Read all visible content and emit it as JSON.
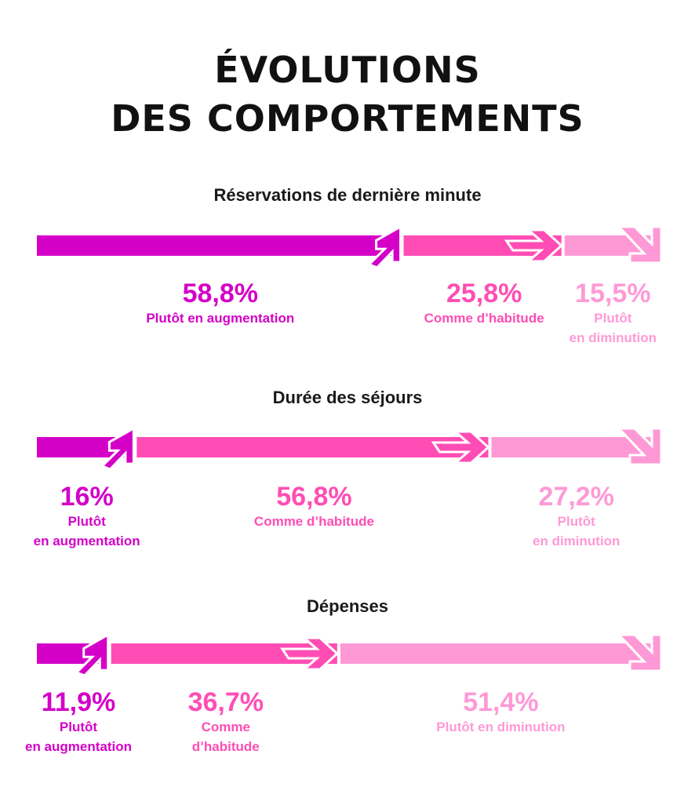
{
  "title_line1": "ÉVOLUTIONS",
  "title_line2": "DES COMPORTEMENTS",
  "colors": {
    "augmentation": "#d400c8",
    "habitude": "#ff4db5",
    "diminution": "#ff99d6"
  },
  "chart_data": [
    {
      "type": "bar",
      "orientation": "horizontal-stacked",
      "title": "Réservations de dernière minute",
      "segments": [
        {
          "value": 58.8,
          "pct": "58,8%",
          "label_lines": [
            "Plutôt en augmentation"
          ],
          "category": "augmentation"
        },
        {
          "value": 25.8,
          "pct": "25,8%",
          "label_lines": [
            "Comme d’habitude"
          ],
          "category": "habitude"
        },
        {
          "value": 15.5,
          "pct": "15,5%",
          "label_lines": [
            "Plutôt",
            "en diminution"
          ],
          "category": "diminution"
        }
      ]
    },
    {
      "type": "bar",
      "orientation": "horizontal-stacked",
      "title": "Durée des séjours",
      "segments": [
        {
          "value": 16,
          "pct": "16%",
          "label_lines": [
            "Plutôt",
            "en augmentation"
          ],
          "category": "augmentation"
        },
        {
          "value": 56.8,
          "pct": "56,8%",
          "label_lines": [
            "Comme d’habitude"
          ],
          "category": "habitude"
        },
        {
          "value": 27.2,
          "pct": "27,2%",
          "label_lines": [
            "Plutôt",
            "en diminution"
          ],
          "category": "diminution"
        }
      ]
    },
    {
      "type": "bar",
      "orientation": "horizontal-stacked",
      "title": "Dépenses",
      "segments": [
        {
          "value": 11.9,
          "pct": "11,9%",
          "label_lines": [
            "Plutôt",
            "en augmentation"
          ],
          "category": "augmentation"
        },
        {
          "value": 36.7,
          "pct": "36,7%",
          "label_lines": [
            "Comme",
            "d’habitude"
          ],
          "category": "habitude"
        },
        {
          "value": 51.4,
          "pct": "51,4%",
          "label_lines": [
            "Plutôt en diminution"
          ],
          "category": "diminution"
        }
      ]
    }
  ]
}
